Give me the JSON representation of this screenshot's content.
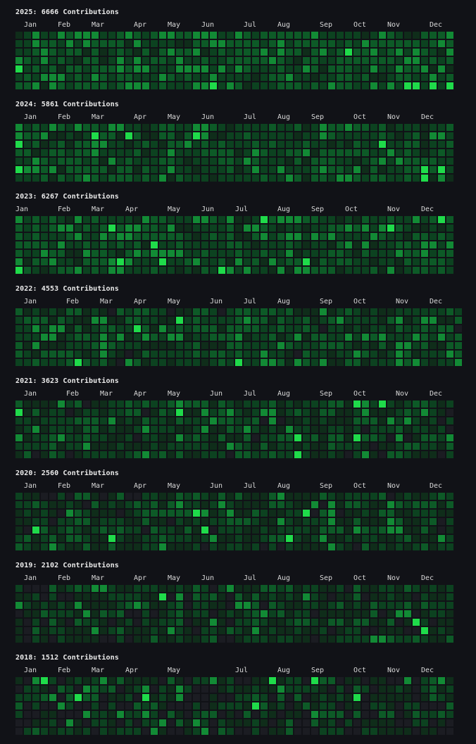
{
  "palette": [
    "#1b1c22",
    "#0f2d1a",
    "#0c4220",
    "#0d5a27",
    "#128a35",
    "#1fdb4a"
  ],
  "years": [
    {
      "title": "2025: 6666 Contributions",
      "year": 2025,
      "weeks": 52,
      "intensity_weights": [
        0,
        8,
        34,
        36,
        18,
        4
      ],
      "months": [
        {
          "label": "Jan",
          "week": 1
        },
        {
          "label": "Feb",
          "week": 5
        },
        {
          "label": "Mar",
          "week": 9
        },
        {
          "label": "Apr",
          "week": 14
        },
        {
          "label": "May",
          "week": 18
        },
        {
          "label": "Jun",
          "week": 22
        },
        {
          "label": "Jul",
          "week": 27
        },
        {
          "label": "Aug",
          "week": 31
        },
        {
          "label": "Sep",
          "week": 36
        },
        {
          "label": "Oct",
          "week": 40
        },
        {
          "label": "Nov",
          "week": 44
        },
        {
          "label": "Dec",
          "week": 49
        }
      ]
    },
    {
      "title": "2024: 5861 Contributions",
      "year": 2024,
      "weeks": 52,
      "intensity_weights": [
        0,
        14,
        40,
        30,
        13,
        3
      ],
      "months": [
        {
          "label": "Jan",
          "week": 1
        },
        {
          "label": "Feb",
          "week": 5
        },
        {
          "label": "Mar",
          "week": 9
        },
        {
          "label": "Apr",
          "week": 14
        },
        {
          "label": "May",
          "week": 18
        },
        {
          "label": "Jun",
          "week": 22
        },
        {
          "label": "Jul",
          "week": 27
        },
        {
          "label": "Aug",
          "week": 31
        },
        {
          "label": "Sep",
          "week": 35
        },
        {
          "label": "Oct",
          "week": 40
        },
        {
          "label": "Nov",
          "week": 44
        },
        {
          "label": "Dec",
          "week": 48
        }
      ]
    },
    {
      "title": "2023: 6267 Contributions",
      "year": 2023,
      "weeks": 52,
      "intensity_weights": [
        0,
        10,
        36,
        34,
        16,
        4
      ],
      "months": [
        {
          "label": "Jan",
          "week": 0
        },
        {
          "label": "Feb",
          "week": 5
        },
        {
          "label": "Mar",
          "week": 9
        },
        {
          "label": "Apr",
          "week": 13
        },
        {
          "label": "May",
          "week": 18
        },
        {
          "label": "Jun",
          "week": 22
        },
        {
          "label": "Jul",
          "week": 26
        },
        {
          "label": "Aug",
          "week": 31
        },
        {
          "label": "Sep",
          "week": 35
        },
        {
          "label": "Oct",
          "week": 39
        },
        {
          "label": "Nov",
          "week": 44
        },
        {
          "label": "Dec",
          "week": 48
        }
      ]
    },
    {
      "title": "2022: 4553 Contributions",
      "year": 2022,
      "weeks": 53,
      "intensity_weights": [
        2,
        22,
        40,
        24,
        10,
        2
      ],
      "months": [
        {
          "label": "Jan",
          "week": 1
        },
        {
          "label": "Feb",
          "week": 6
        },
        {
          "label": "Mar",
          "week": 10
        },
        {
          "label": "Apr",
          "week": 14
        },
        {
          "label": "May",
          "week": 18
        },
        {
          "label": "Jun",
          "week": 23
        },
        {
          "label": "Jul",
          "week": 27
        },
        {
          "label": "Aug",
          "week": 31
        },
        {
          "label": "Sep",
          "week": 36
        },
        {
          "label": "Oct",
          "week": 40
        },
        {
          "label": "Nov",
          "week": 45
        },
        {
          "label": "Dec",
          "week": 49
        }
      ]
    },
    {
      "title": "2021: 3623 Contributions",
      "year": 2021,
      "weeks": 52,
      "intensity_weights": [
        4,
        30,
        36,
        20,
        8,
        2
      ],
      "months": [
        {
          "label": "Jan",
          "week": 1
        },
        {
          "label": "Feb",
          "week": 6
        },
        {
          "label": "Mar",
          "week": 10
        },
        {
          "label": "Apr",
          "week": 14
        },
        {
          "label": "May",
          "week": 18
        },
        {
          "label": "Jun",
          "week": 23
        },
        {
          "label": "Jul",
          "week": 27
        },
        {
          "label": "Aug",
          "week": 31
        },
        {
          "label": "Sep",
          "week": 36
        },
        {
          "label": "Oct",
          "week": 40
        },
        {
          "label": "Nov",
          "week": 45
        },
        {
          "label": "Dec",
          "week": 49
        }
      ]
    },
    {
      "title": "2020: 2560 Contributions",
      "year": 2020,
      "weeks": 52,
      "intensity_weights": [
        8,
        36,
        32,
        16,
        6,
        2
      ],
      "months": [
        {
          "label": "Jan",
          "week": 1
        },
        {
          "label": "Feb",
          "week": 5
        },
        {
          "label": "Mar",
          "week": 9
        },
        {
          "label": "Apr",
          "week": 14
        },
        {
          "label": "May",
          "week": 18
        },
        {
          "label": "Jun",
          "week": 23
        },
        {
          "label": "Jul",
          "week": 27
        },
        {
          "label": "Aug",
          "week": 31
        },
        {
          "label": "Sep",
          "week": 36
        },
        {
          "label": "Oct",
          "week": 40
        },
        {
          "label": "Nov",
          "week": 44
        },
        {
          "label": "Dec",
          "week": 49
        }
      ]
    },
    {
      "title": "2019: 2102 Contributions",
      "year": 2019,
      "weeks": 52,
      "intensity_weights": [
        14,
        36,
        30,
        14,
        5,
        1
      ],
      "months": [
        {
          "label": "Jan",
          "week": 1
        },
        {
          "label": "Feb",
          "week": 5
        },
        {
          "label": "Mar",
          "week": 9
        },
        {
          "label": "Apr",
          "week": 14
        },
        {
          "label": "May",
          "week": 18
        },
        {
          "label": "Jun",
          "week": 22
        },
        {
          "label": "Jul",
          "week": 27
        },
        {
          "label": "Aug",
          "week": 31
        },
        {
          "label": "Sep",
          "week": 36
        },
        {
          "label": "Oct",
          "week": 40
        },
        {
          "label": "Nov",
          "week": 44
        },
        {
          "label": "Dec",
          "week": 48
        }
      ]
    },
    {
      "title": "2018: 1512 Contributions",
      "year": 2018,
      "weeks": 52,
      "intensity_weights": [
        30,
        26,
        24,
        12,
        6,
        2
      ],
      "months": [
        {
          "label": "Jan",
          "week": 1
        },
        {
          "label": "Feb",
          "week": 5
        },
        {
          "label": "Mar",
          "week": 9
        },
        {
          "label": "Apr",
          "week": 13
        },
        {
          "label": "May",
          "week": 18
        },
        {
          "label": "Jul",
          "week": 26
        },
        {
          "label": "Aug",
          "week": 31
        },
        {
          "label": "Sep",
          "week": 35
        },
        {
          "label": "Oct",
          "week": 40
        },
        {
          "label": "Nov",
          "week": 44
        },
        {
          "label": "Dec",
          "week": 48
        }
      ]
    }
  ]
}
